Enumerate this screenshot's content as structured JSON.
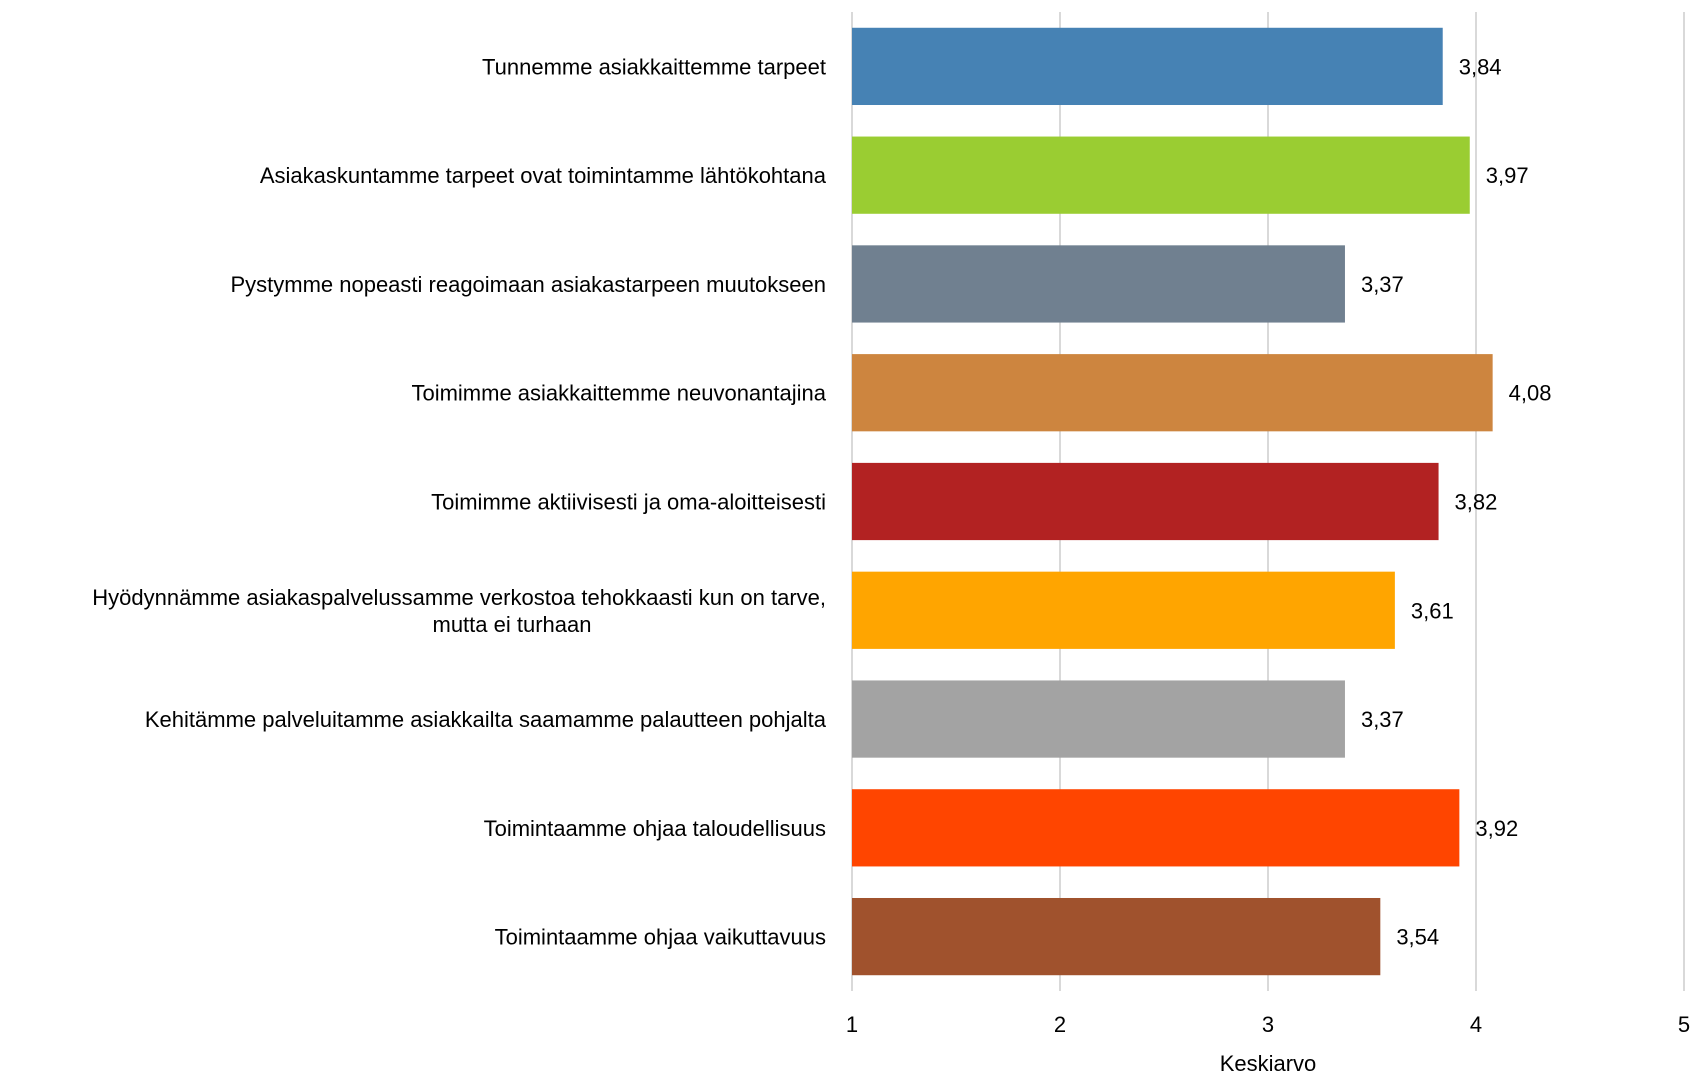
{
  "chart_data": {
    "type": "bar",
    "orientation": "horizontal",
    "categories": [
      "Tunnemme asiakkaittemme tarpeet",
      "Asiakaskuntamme tarpeet ovat toimintamme lähtökohtana",
      "Pystymme nopeasti reagoimaan asiakastarpeen muutokseen",
      "Toimimme asiakkaittemme neuvonantajina",
      "Toimimme aktiivisesti ja oma-aloitteisesti",
      "Hyödynnämme asiakaspalvelussamme verkostoa tehokkaasti kun on tarve,\nmutta ei turhaan",
      "Kehitämme palveluitamme asiakkailta saamamme palautteen pohjalta",
      "Toimintaamme ohjaa taloudellisuus",
      "Toimintaamme ohjaa vaikuttavuus"
    ],
    "values": [
      3.84,
      3.97,
      3.37,
      4.08,
      3.82,
      3.61,
      3.37,
      3.92,
      3.54
    ],
    "value_labels": [
      "3,84",
      "3,97",
      "3,37",
      "4,08",
      "3,82",
      "3,61",
      "3,37",
      "3,92",
      "3,54"
    ],
    "colors": [
      "#4682B4",
      "#9ACD32",
      "#708090",
      "#CD853F",
      "#B22222",
      "#FFA500",
      "#A3A3A3",
      "#FF4500",
      "#A0522D"
    ],
    "xlim": [
      1,
      5
    ],
    "xticks": [
      "1",
      "2",
      "3",
      "4",
      "5"
    ],
    "xlabel": "Keskiarvo",
    "grid": true
  }
}
